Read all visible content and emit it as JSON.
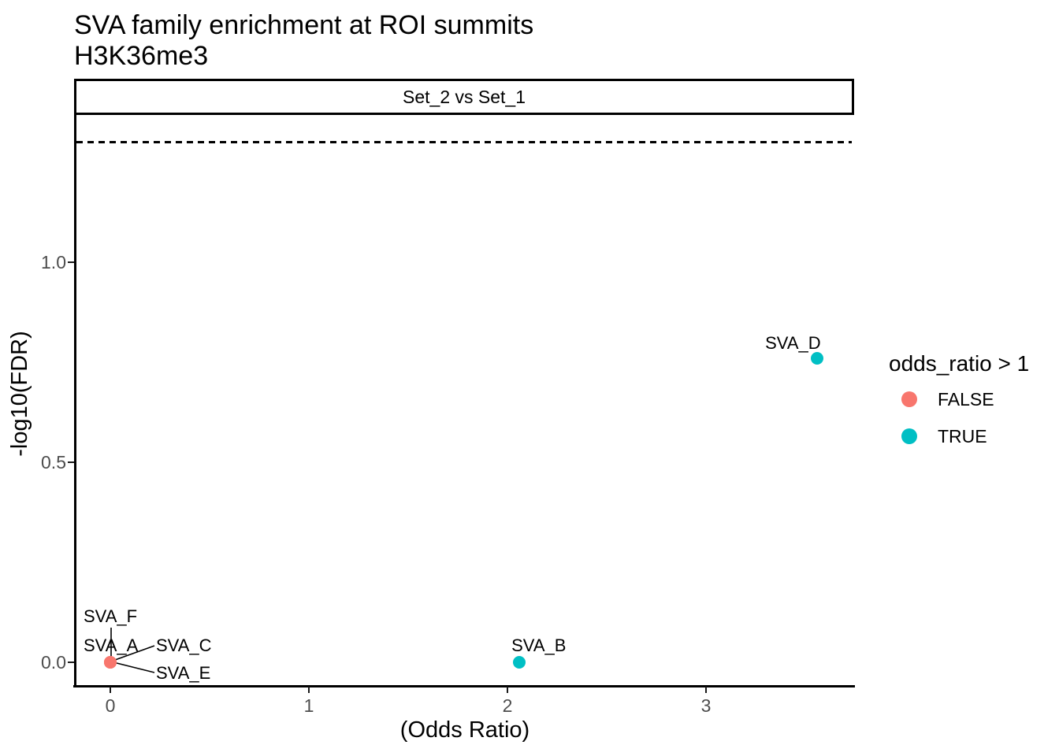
{
  "chart_data": {
    "type": "scatter",
    "title": "SVA family enrichment at ROI summits",
    "subtitle": "H3K36me3",
    "facet_label": "Set_2 vs Set_1",
    "xlabel": "(Odds Ratio)",
    "ylabel": "-log10(FDR)",
    "xlim": [
      -0.175,
      3.74
    ],
    "ylim": [
      -0.057,
      1.37
    ],
    "grid": "off",
    "legend_position": "right",
    "x_ticks": [
      {
        "value": 0,
        "label": "0"
      },
      {
        "value": 1,
        "label": "1"
      },
      {
        "value": 2,
        "label": "2"
      },
      {
        "value": 3,
        "label": "3"
      }
    ],
    "y_ticks": [
      {
        "value": 0.0,
        "label": "0.0"
      },
      {
        "value": 0.5,
        "label": "0.5"
      },
      {
        "value": 1.0,
        "label": "1.0"
      }
    ],
    "threshold_line": {
      "y": 1.3,
      "style": "dashed",
      "color": "#000000"
    },
    "legend": {
      "title": "odds_ratio > 1",
      "items": [
        {
          "label": "FALSE",
          "color": "#F8766D"
        },
        {
          "label": "TRUE",
          "color": "#00BFC4"
        }
      ]
    },
    "colors": {
      "FALSE": "#F8766D",
      "TRUE": "#00BFC4"
    },
    "points": [
      {
        "label": "SVA_A",
        "x": 0,
        "y": 0,
        "odds_ratio_gt_1": "FALSE"
      },
      {
        "label": "SVA_B",
        "x": 2.06,
        "y": 0,
        "odds_ratio_gt_1": "TRUE"
      },
      {
        "label": "SVA_C",
        "x": 0,
        "y": 0,
        "odds_ratio_gt_1": "FALSE"
      },
      {
        "label": "SVA_D",
        "x": 3.56,
        "y": 0.76,
        "odds_ratio_gt_1": "TRUE"
      },
      {
        "label": "SVA_E",
        "x": 0,
        "y": 0,
        "odds_ratio_gt_1": "FALSE"
      },
      {
        "label": "SVA_F",
        "x": 0,
        "y": 0,
        "odds_ratio_gt_1": "FALSE"
      }
    ],
    "tick_text_color": "#4D4D4D"
  }
}
